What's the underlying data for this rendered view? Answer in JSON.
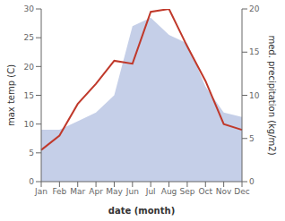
{
  "chart_data": {
    "type": "line",
    "categories": [
      "Jan",
      "Feb",
      "Mar",
      "Apr",
      "May",
      "Jun",
      "Jul",
      "Aug",
      "Sep",
      "Oct",
      "Nov",
      "Dec"
    ],
    "series": [
      {
        "type": "area",
        "axis": "y2",
        "color": "#c5cfe8",
        "values": [
          6.0,
          6.0,
          7.0,
          8.0,
          10.0,
          18.0,
          19.0,
          17.0,
          16.0,
          11.0,
          8.0,
          7.5
        ]
      },
      {
        "type": "line",
        "color": "#c0392b",
        "values": [
          5.5,
          8.0,
          13.5,
          17.0,
          21.0,
          20.5,
          29.5,
          30.0,
          23.5,
          17.5,
          10.0,
          9.0
        ]
      }
    ],
    "xlabel": "date (month)",
    "ylabel": "max temp (C)",
    "y2label": "med. precipitation (kg/m2)",
    "ylim": [
      0,
      30
    ],
    "yticks": [
      0,
      5,
      10,
      15,
      20,
      25,
      30
    ],
    "y2lim": [
      0,
      20
    ],
    "y2ticks": [
      0,
      5,
      10,
      15,
      20
    ],
    "grid": false
  }
}
